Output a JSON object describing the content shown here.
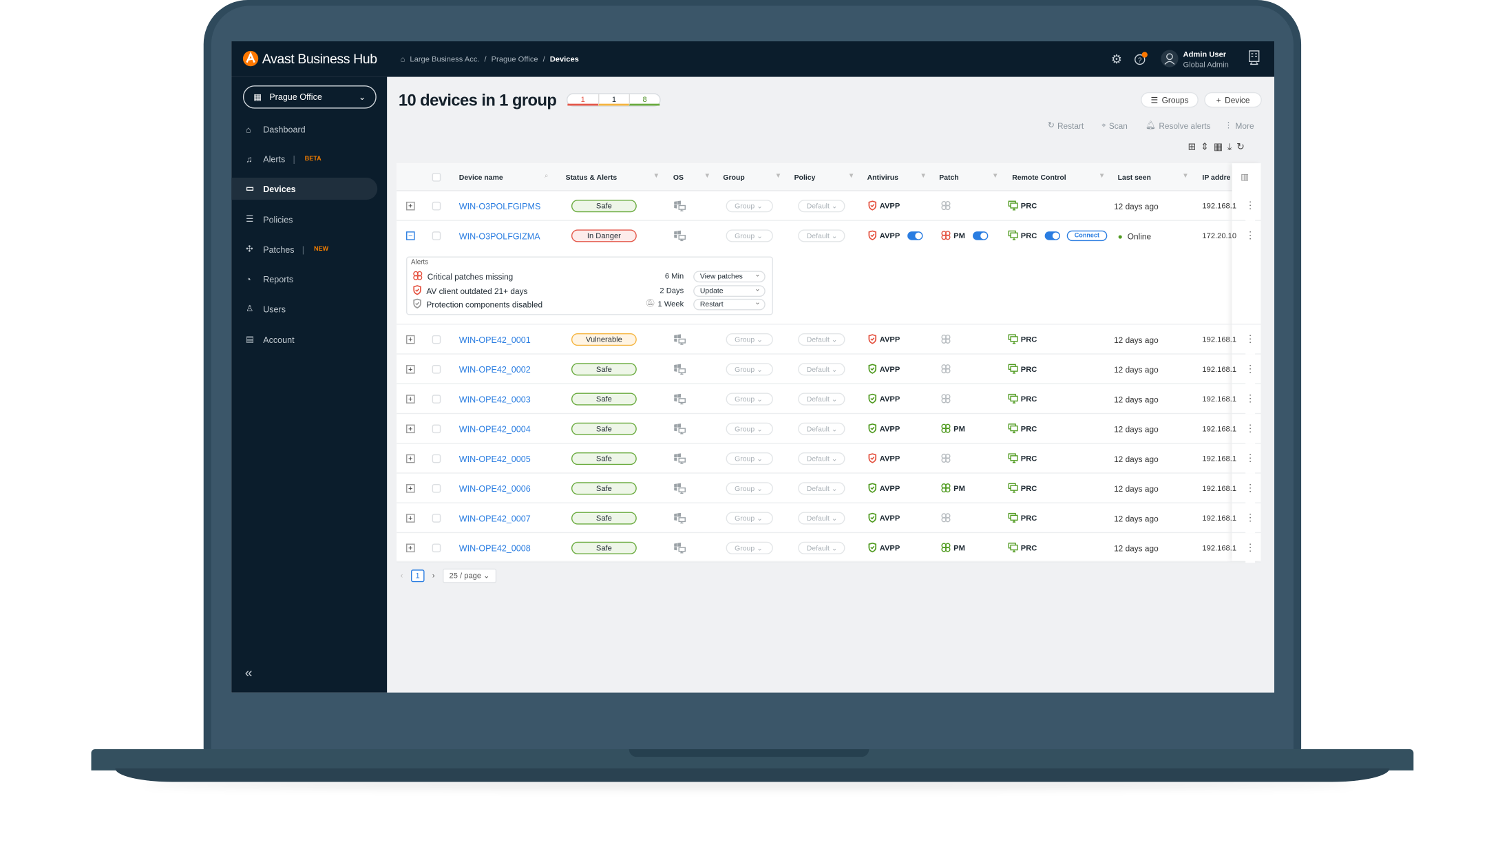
{
  "app": {
    "title": "Avast Business Hub",
    "brand_color": "#ff7800"
  },
  "breadcrumb": [
    "Large Business Acc.",
    "Prague Office",
    "Devices"
  ],
  "user": {
    "name": "Admin User",
    "role": "Global Admin"
  },
  "sidebar": {
    "office": "Prague Office",
    "items": [
      {
        "label": "Dashboard",
        "icon": "home-icon"
      },
      {
        "label": "Alerts",
        "tag": "BETA",
        "icon": "bell-icon"
      },
      {
        "label": "Devices",
        "icon": "monitor-icon",
        "active": true
      },
      {
        "label": "Policies",
        "icon": "policies-icon"
      },
      {
        "label": "Patches",
        "tag": "NEW",
        "icon": "patch-icon"
      },
      {
        "label": "Reports",
        "icon": "pie-icon"
      },
      {
        "label": "Users",
        "icon": "user-icon"
      },
      {
        "label": "Account",
        "icon": "account-icon"
      }
    ]
  },
  "main": {
    "title": "10 devices in 1 group",
    "badges": [
      {
        "value": "1",
        "color": "#e4584a"
      },
      {
        "value": "1",
        "color": "#f5b540"
      },
      {
        "value": "8",
        "color": "#6aab3f"
      }
    ],
    "groups_label": "Groups",
    "device_label": "Device",
    "actions": [
      "Restart",
      "Scan",
      "Resolve alerts",
      "More"
    ]
  },
  "table": {
    "columns": [
      "Device name",
      "Status & Alerts",
      "OS",
      "Group",
      "Policy",
      "Antivirus",
      "Patch",
      "Remote Control",
      "Last seen",
      "IP addre"
    ],
    "rows": [
      {
        "name": "WIN-O3POLFGIPMS",
        "status": "Safe",
        "group": "Group",
        "policy": "Default",
        "av": "AVPP",
        "av_color": "red",
        "patch": "",
        "patch_color": "gray",
        "rc": "PRC",
        "last_seen": "12 days ago",
        "ip": "192.168.1"
      },
      {
        "name": "WIN-O3POLFGIZMA",
        "status": "In Danger",
        "group": "Group",
        "policy": "Default",
        "av": "AVPP",
        "av_color": "red",
        "patch": "PM",
        "patch_color": "red",
        "rc": "PRC",
        "last_seen": "Online",
        "ip": "172.20.10",
        "expanded": true,
        "connect": "Connect"
      },
      {
        "name": "WIN-OPE42_0001",
        "status": "Vulnerable",
        "group": "Group",
        "policy": "Default",
        "av": "AVPP",
        "av_color": "red",
        "patch": "",
        "patch_color": "gray",
        "rc": "PRC",
        "last_seen": "12 days ago",
        "ip": "192.168.1"
      },
      {
        "name": "WIN-OPE42_0002",
        "status": "Safe",
        "group": "Group",
        "policy": "Default",
        "av": "AVPP",
        "av_color": "green",
        "patch": "",
        "patch_color": "gray",
        "rc": "PRC",
        "last_seen": "12 days ago",
        "ip": "192.168.1"
      },
      {
        "name": "WIN-OPE42_0003",
        "status": "Safe",
        "group": "Group",
        "policy": "Default",
        "av": "AVPP",
        "av_color": "green",
        "patch": "",
        "patch_color": "gray",
        "rc": "PRC",
        "last_seen": "12 days ago",
        "ip": "192.168.1"
      },
      {
        "name": "WIN-OPE42_0004",
        "status": "Safe",
        "group": "Group",
        "policy": "Default",
        "av": "AVPP",
        "av_color": "green",
        "patch": "PM",
        "patch_color": "green",
        "rc": "PRC",
        "last_seen": "12 days ago",
        "ip": "192.168.1"
      },
      {
        "name": "WIN-OPE42_0005",
        "status": "Safe",
        "group": "Group",
        "policy": "Default",
        "av": "AVPP",
        "av_color": "red",
        "patch": "",
        "patch_color": "gray",
        "rc": "PRC",
        "last_seen": "12 days ago",
        "ip": "192.168.1"
      },
      {
        "name": "WIN-OPE42_0006",
        "status": "Safe",
        "group": "Group",
        "policy": "Default",
        "av": "AVPP",
        "av_color": "green",
        "patch": "PM",
        "patch_color": "green",
        "rc": "PRC",
        "last_seen": "12 days ago",
        "ip": "192.168.1"
      },
      {
        "name": "WIN-OPE42_0007",
        "status": "Safe",
        "group": "Group",
        "policy": "Default",
        "av": "AVPP",
        "av_color": "green",
        "patch": "",
        "patch_color": "gray",
        "rc": "PRC",
        "last_seen": "12 days ago",
        "ip": "192.168.1"
      },
      {
        "name": "WIN-OPE42_0008",
        "status": "Safe",
        "group": "Group",
        "policy": "Default",
        "av": "AVPP",
        "av_color": "green",
        "patch": "PM",
        "patch_color": "green",
        "rc": "PRC",
        "last_seen": "12 days ago",
        "ip": "192.168.1"
      }
    ],
    "alerts": {
      "title": "Alerts",
      "items": [
        {
          "text": "Critical patches missing",
          "time": "6 Min",
          "action": "View patches",
          "icon": "patch-icon"
        },
        {
          "text": "AV client outdated 21+ days",
          "time": "2 Days",
          "action": "Update",
          "icon": "shield-icon"
        },
        {
          "text": "Protection components disabled",
          "time": "1 Week",
          "action": "Restart",
          "icon": "shield-icon",
          "muted": true
        }
      ]
    }
  },
  "pagination": {
    "page": "1",
    "page_size": "25 / page"
  }
}
